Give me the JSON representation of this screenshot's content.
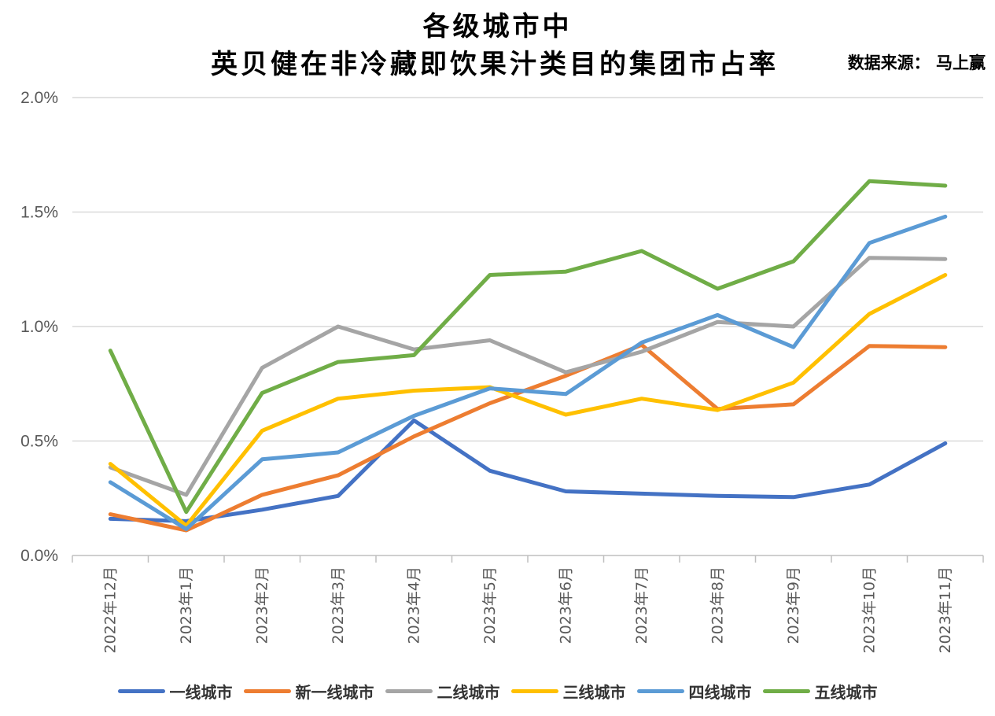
{
  "chart_data": {
    "type": "line",
    "title_line1": "各级城市中",
    "title_line2": "英贝健在非冷藏即饮果汁类目的集团市占率",
    "source": "数据来源： 马上赢",
    "categories": [
      "2022年12月",
      "2023年1月",
      "2023年2月",
      "2023年3月",
      "2023年4月",
      "2023年5月",
      "2023年6月",
      "2023年7月",
      "2023年8月",
      "2023年9月",
      "2023年10月",
      "2023年11月"
    ],
    "ylim": [
      0,
      2.0
    ],
    "yticks": [
      0.0,
      0.5,
      1.0,
      1.5,
      2.0
    ],
    "yticks_labels": [
      "0.0%",
      "0.5%",
      "1.0%",
      "1.5%",
      "2.0%"
    ],
    "grid": true,
    "legend_position": "bottom",
    "series": [
      {
        "name": "一线城市",
        "color": "#4472C4",
        "values": [
          0.16,
          0.15,
          0.2,
          0.26,
          0.59,
          0.37,
          0.28,
          0.27,
          0.26,
          0.255,
          0.31,
          0.49
        ]
      },
      {
        "name": "新一线城市",
        "color": "#ED7D31",
        "values": [
          0.18,
          0.11,
          0.265,
          0.35,
          0.52,
          0.665,
          0.785,
          0.92,
          0.64,
          0.66,
          0.915,
          0.91
        ]
      },
      {
        "name": "二线城市",
        "color": "#A5A5A5",
        "values": [
          0.385,
          0.265,
          0.82,
          1.0,
          0.9,
          0.94,
          0.8,
          0.89,
          1.02,
          1.0,
          1.3,
          1.295
        ]
      },
      {
        "name": "三线城市",
        "color": "#FFC000",
        "values": [
          0.4,
          0.13,
          0.545,
          0.685,
          0.72,
          0.735,
          0.615,
          0.685,
          0.635,
          0.755,
          1.055,
          1.225
        ]
      },
      {
        "name": "四线城市",
        "color": "#5B9BD5",
        "values": [
          0.32,
          0.115,
          0.42,
          0.45,
          0.61,
          0.73,
          0.705,
          0.93,
          1.05,
          0.91,
          1.365,
          1.48
        ]
      },
      {
        "name": "五线城市",
        "color": "#70AD47",
        "values": [
          0.895,
          0.19,
          0.71,
          0.845,
          0.875,
          1.225,
          1.24,
          1.33,
          1.165,
          1.285,
          1.635,
          1.615
        ]
      }
    ]
  }
}
